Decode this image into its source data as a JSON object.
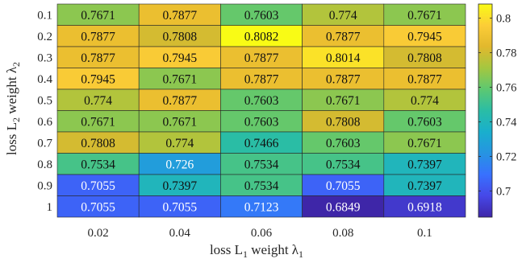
{
  "chart_data": {
    "type": "heatmap",
    "xlabel": "loss L",
    "xlabel_sub": "1",
    "xlabel_tail": " weight λ",
    "xlabel_tail_sub": "1",
    "ylabel": "loss L",
    "ylabel_sub": "2",
    "ylabel_tail": " weight λ",
    "ylabel_tail_sub": "2",
    "x_categories": [
      "0.02",
      "0.04",
      "0.06",
      "0.08",
      "0.1"
    ],
    "y_categories": [
      "0.1",
      "0.2",
      "0.3",
      "0.4",
      "0.5",
      "0.6",
      "0.7",
      "0.8",
      "0.9",
      "1"
    ],
    "values": [
      [
        "0.7671",
        "0.7877",
        "0.7603",
        "0.774",
        "0.7671"
      ],
      [
        "0.7877",
        "0.7808",
        "0.8082",
        "0.7877",
        "0.7945"
      ],
      [
        "0.7877",
        "0.7945",
        "0.7877",
        "0.8014",
        "0.7808"
      ],
      [
        "0.7945",
        "0.7671",
        "0.7877",
        "0.7877",
        "0.7877"
      ],
      [
        "0.774",
        "0.7877",
        "0.7603",
        "0.7671",
        "0.774"
      ],
      [
        "0.7671",
        "0.7671",
        "0.7603",
        "0.7808",
        "0.7603"
      ],
      [
        "0.7808",
        "0.774",
        "0.7466",
        "0.7603",
        "0.7671"
      ],
      [
        "0.7534",
        "0.726",
        "0.7534",
        "0.7534",
        "0.7397"
      ],
      [
        "0.7055",
        "0.7397",
        "0.7534",
        "0.7055",
        "0.7397"
      ],
      [
        "0.7055",
        "0.7055",
        "0.7123",
        "0.6849",
        "0.6918"
      ]
    ],
    "colormap": "parula",
    "clim": [
      0.6849,
      0.8082
    ],
    "colorbar_ticks": [
      "0.7",
      "0.72",
      "0.74",
      "0.76",
      "0.78",
      "0.8"
    ],
    "grid": true,
    "colorbar_position": "right"
  }
}
